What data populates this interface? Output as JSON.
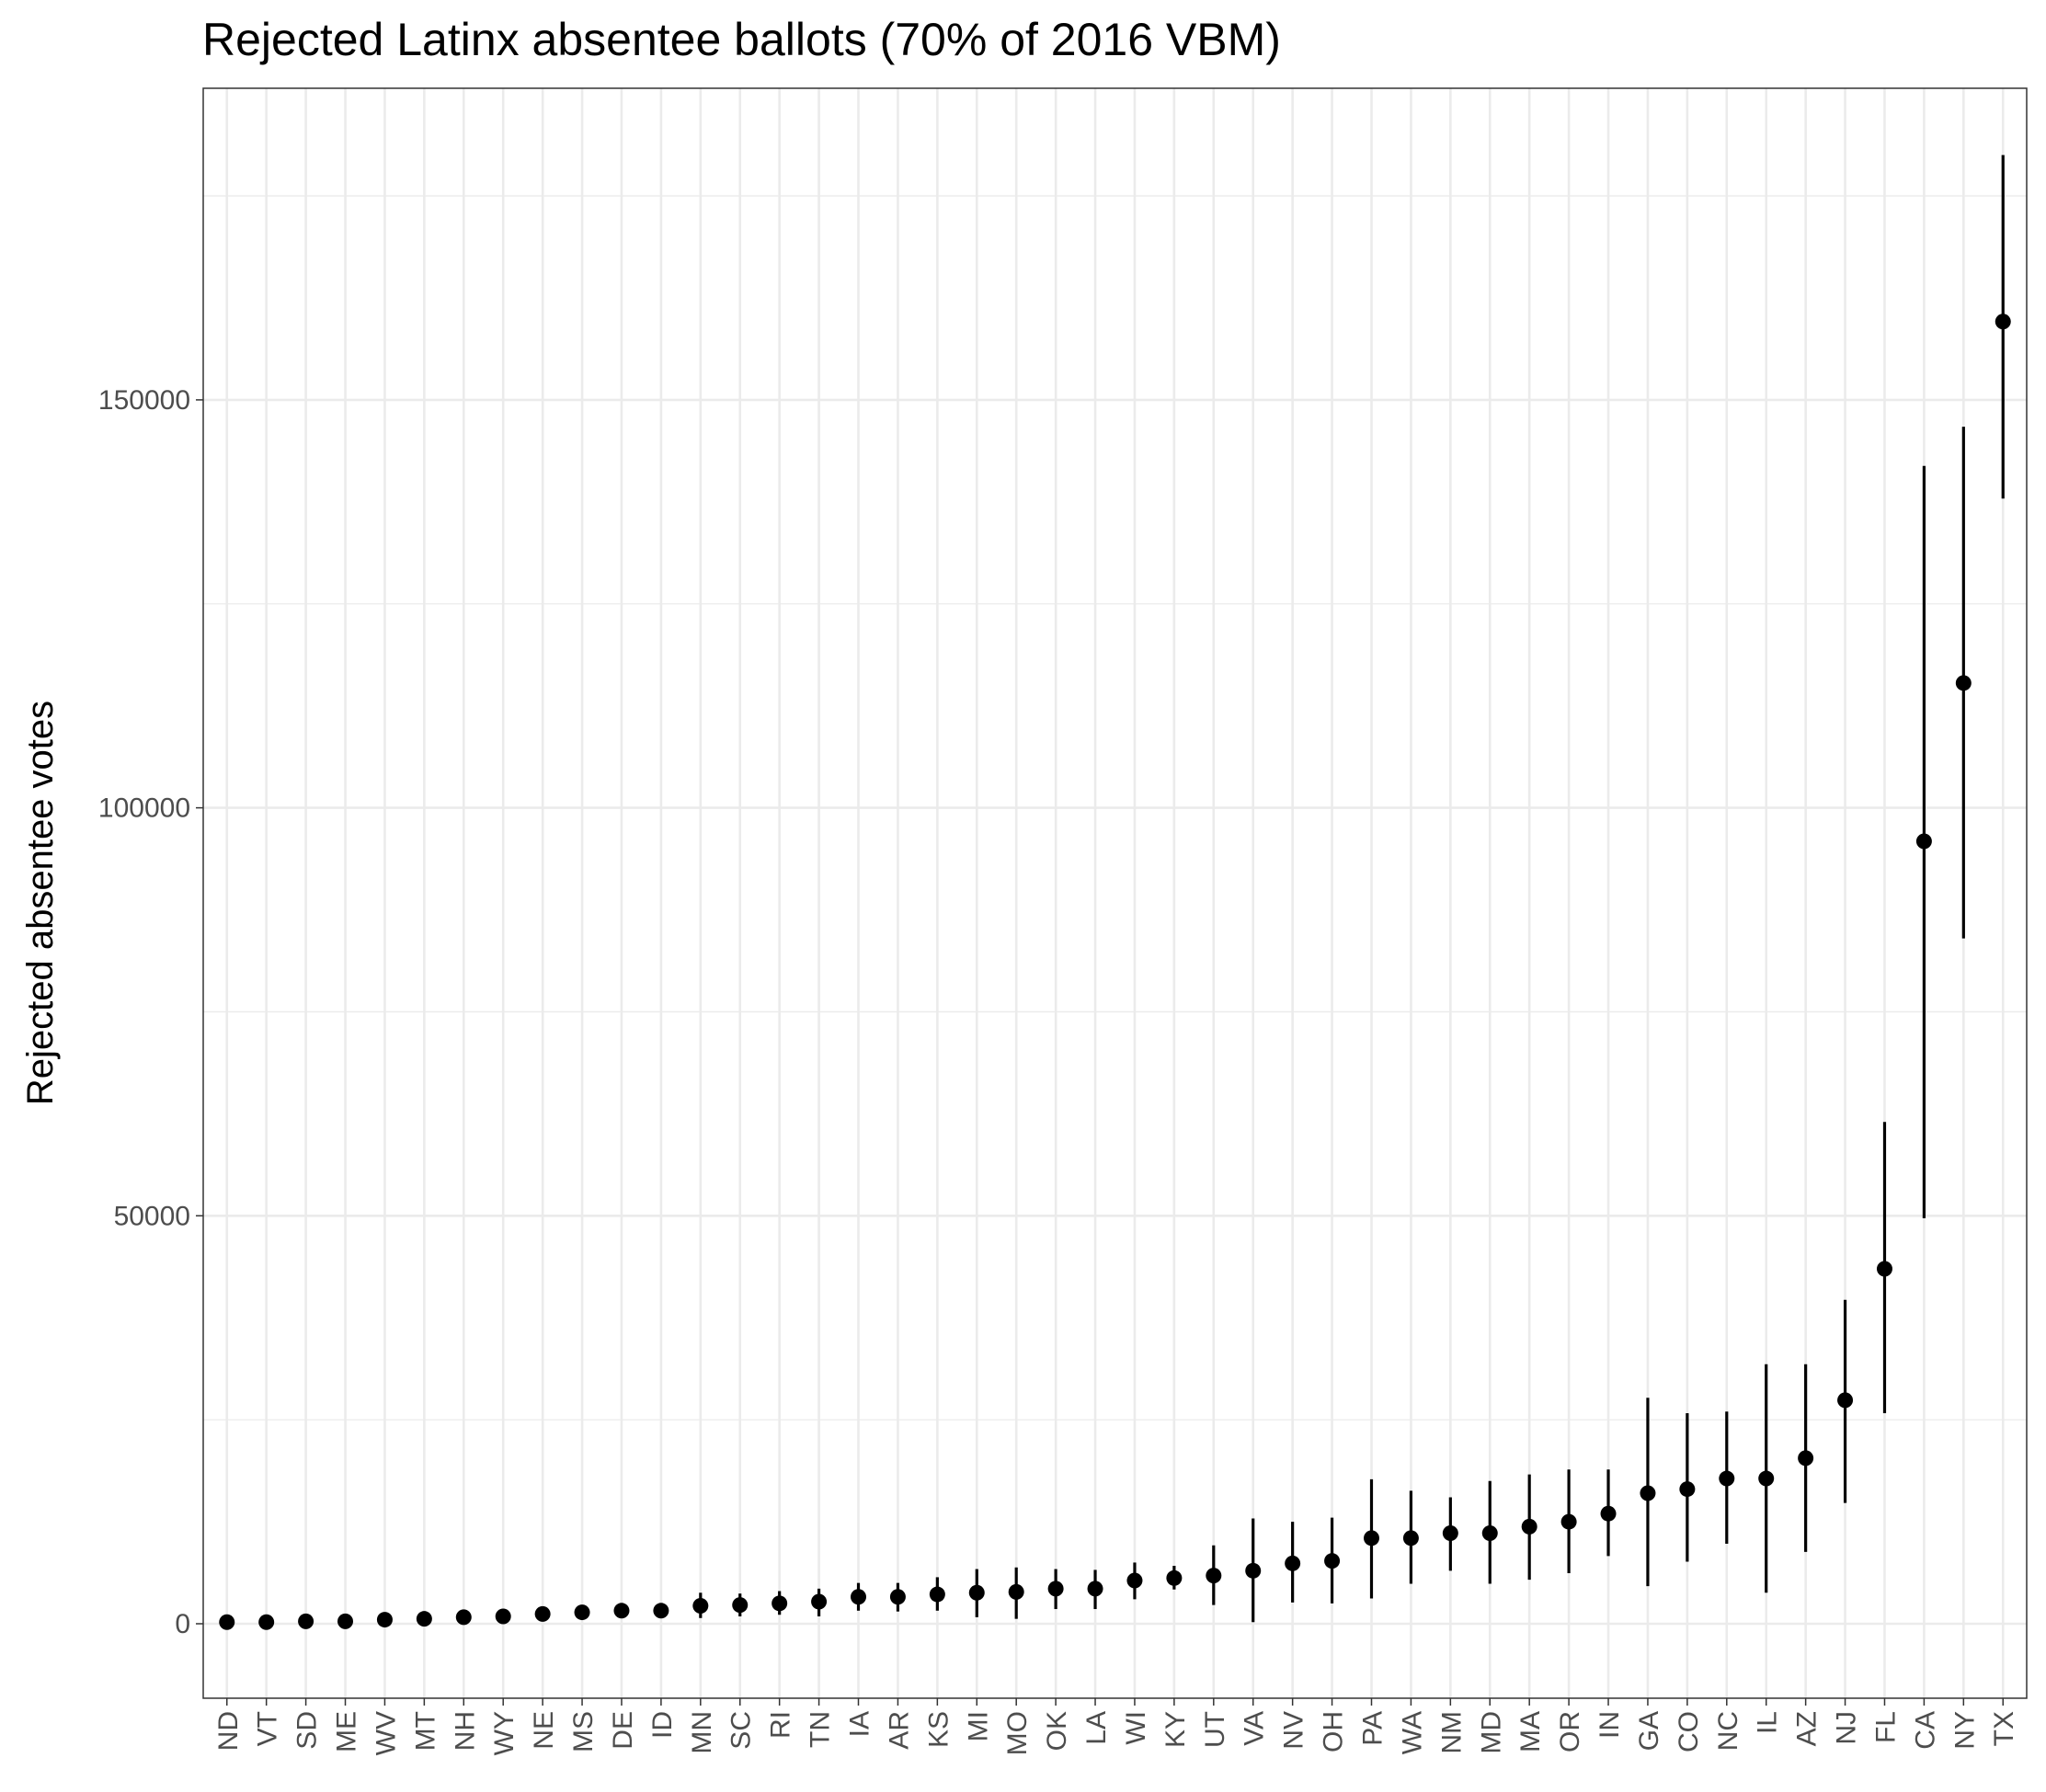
{
  "chart_data": {
    "type": "scatter",
    "title": "Rejected Latinx absentee ballots (70% of 2016 VBM)",
    "xlabel": "",
    "ylabel": "Rejected absentee votes",
    "ylim": [
      -8000,
      190000
    ],
    "yticks": [
      0,
      50000,
      100000,
      150000
    ],
    "ytick_labels": [
      "0",
      "50000",
      "100000",
      "150000"
    ],
    "grid": true,
    "categories": [
      "ND",
      "VT",
      "SD",
      "ME",
      "WV",
      "MT",
      "NH",
      "WY",
      "NE",
      "MS",
      "DE",
      "ID",
      "MN",
      "SC",
      "RI",
      "TN",
      "IA",
      "AR",
      "KS",
      "MI",
      "MO",
      "OK",
      "LA",
      "WI",
      "KY",
      "UT",
      "VA",
      "NV",
      "OH",
      "PA",
      "WA",
      "NM",
      "MD",
      "MA",
      "OR",
      "IN",
      "GA",
      "CO",
      "NC",
      "IL",
      "AZ",
      "NJ",
      "FL",
      "CA",
      "NY",
      "TX"
    ],
    "values": [
      200,
      200,
      300,
      300,
      500,
      600,
      800,
      900,
      1200,
      1400,
      1600,
      1600,
      2200,
      2300,
      2500,
      2700,
      3300,
      3300,
      3600,
      3800,
      3900,
      4300,
      4300,
      5300,
      5600,
      5900,
      6500,
      7400,
      7700,
      10500,
      10500,
      11100,
      11100,
      11900,
      12500,
      13500,
      16000,
      16500,
      17800,
      17800,
      20300,
      27400,
      43500,
      95900,
      115300,
      159600
    ],
    "lower": [
      200,
      200,
      300,
      300,
      500,
      600,
      800,
      900,
      1200,
      1400,
      1600,
      1600,
      700,
      900,
      1100,
      900,
      1600,
      1500,
      1600,
      800,
      600,
      1800,
      1800,
      3000,
      4200,
      2300,
      200,
      2600,
      2500,
      3100,
      4900,
      6500,
      4900,
      5400,
      6200,
      8300,
      4600,
      7600,
      9800,
      3800,
      8800,
      14800,
      25800,
      49700,
      84000,
      137900
    ],
    "upper": [
      200,
      200,
      300,
      300,
      500,
      600,
      800,
      900,
      1200,
      1400,
      1600,
      1600,
      3800,
      3700,
      4000,
      4300,
      5000,
      5000,
      5700,
      6700,
      6900,
      6700,
      6600,
      7500,
      7100,
      9600,
      12900,
      12500,
      13000,
      17700,
      16300,
      15500,
      17500,
      18300,
      18900,
      18900,
      27700,
      25800,
      26000,
      31800,
      31800,
      39700,
      61500,
      141900,
      146700,
      180000
    ]
  }
}
